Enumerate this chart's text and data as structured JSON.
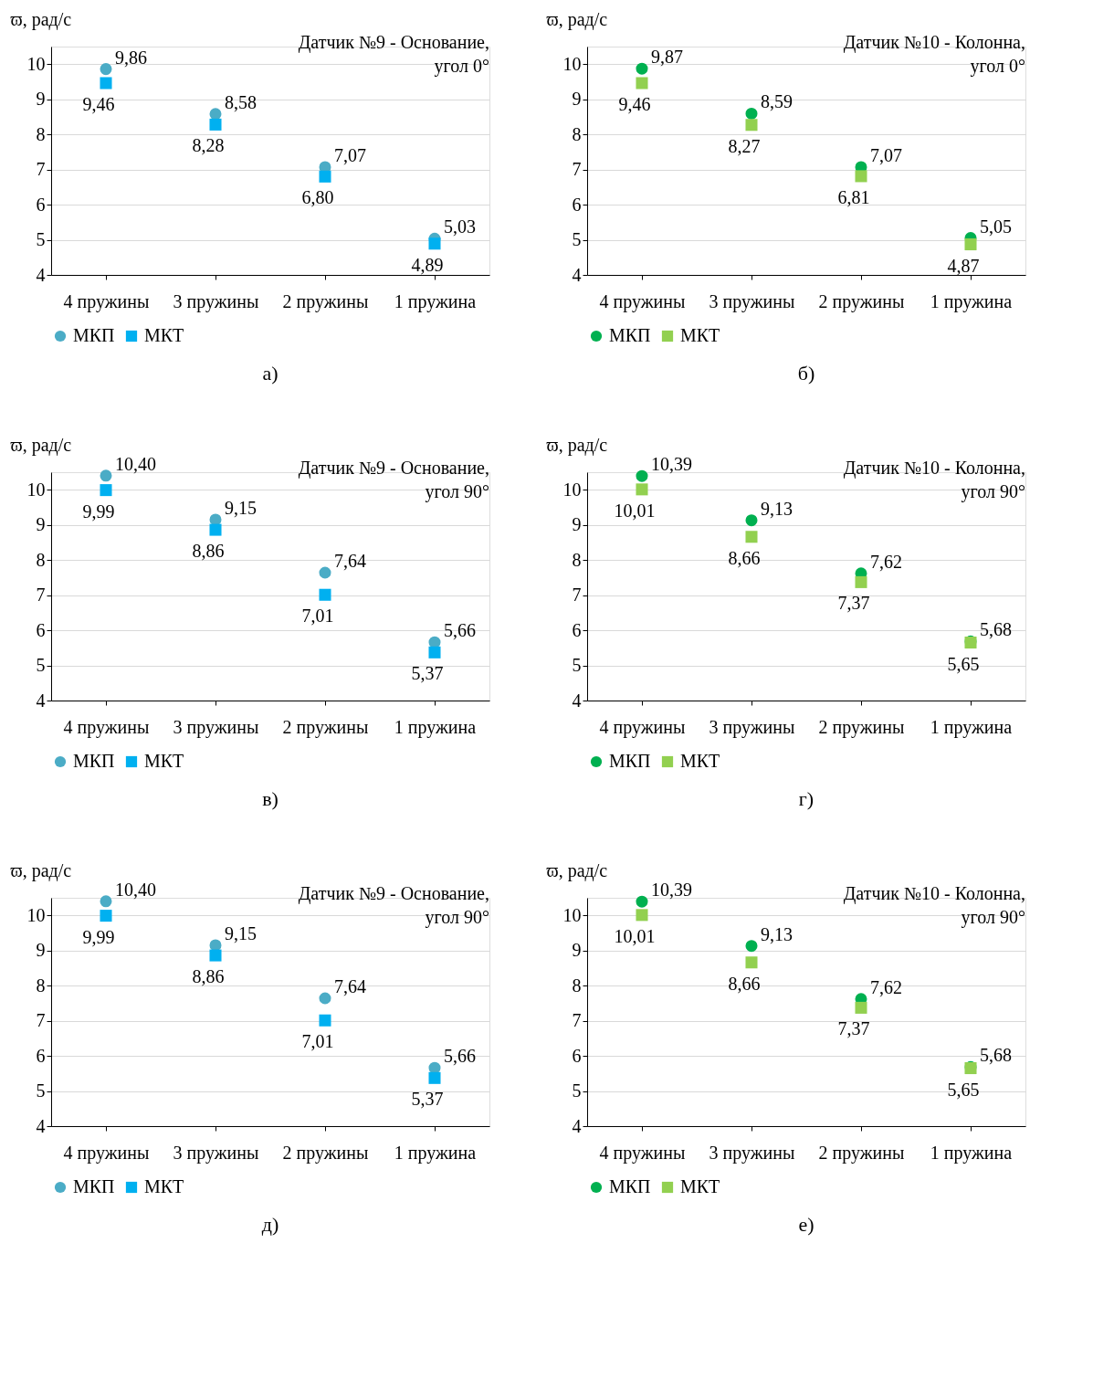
{
  "chart_data": [
    {
      "type": "scatter",
      "title": "Датчик №9 - Основание, угол 0°",
      "ylabel": "ϖ, рад/с",
      "categories": [
        "4 пружины",
        "3 пружины",
        "2 пружины",
        "1 пружина"
      ],
      "ylim": [
        4,
        10.5
      ],
      "yticks": [
        4,
        5,
        6,
        7,
        8,
        9,
        10
      ],
      "grid": "y",
      "legend": "bottom",
      "annotations": [
        "а)"
      ],
      "series": [
        {
          "name": "МКП",
          "color": "#4bacc6",
          "marker": "circle",
          "values": [
            9.86,
            8.58,
            7.07,
            5.03
          ],
          "value_labels": [
            "9,86",
            "8,58",
            "7,07",
            "5,03"
          ]
        },
        {
          "name": "МКТ",
          "color": "#00b0f0",
          "marker": "square",
          "values": [
            9.46,
            8.28,
            6.8,
            4.89
          ],
          "value_labels": [
            "9,46",
            "8,28",
            "6,80",
            "4,89"
          ]
        }
      ]
    },
    {
      "type": "scatter",
      "title": "Датчик №10 - Колонна, угол 0°",
      "ylabel": "ϖ, рад/с",
      "categories": [
        "4 пружины",
        "3 пружины",
        "2 пружины",
        "1 пружина"
      ],
      "ylim": [
        4,
        10.5
      ],
      "yticks": [
        4,
        5,
        6,
        7,
        8,
        9,
        10
      ],
      "grid": "y",
      "legend": "bottom",
      "annotations": [
        "б)"
      ],
      "series": [
        {
          "name": "МКП",
          "color": "#00b050",
          "marker": "circle",
          "values": [
            9.87,
            8.59,
            7.07,
            5.05
          ],
          "value_labels": [
            "9,87",
            "8,59",
            "7,07",
            "5,05"
          ]
        },
        {
          "name": "МКТ",
          "color": "#92d050",
          "marker": "square",
          "values": [
            9.46,
            8.27,
            6.81,
            4.87
          ],
          "value_labels": [
            "9,46",
            "8,27",
            "6,81",
            "4,87"
          ]
        }
      ]
    },
    {
      "type": "scatter",
      "title": "Датчик №9 - Основание, угол 90°",
      "ylabel": "ϖ, рад/с",
      "categories": [
        "4 пружины",
        "3 пружины",
        "2 пружины",
        "1 пружина"
      ],
      "ylim": [
        4,
        10.5
      ],
      "yticks": [
        4,
        5,
        6,
        7,
        8,
        9,
        10
      ],
      "grid": "y",
      "legend": "bottom",
      "annotations": [
        "в)"
      ],
      "series": [
        {
          "name": "МКП",
          "color": "#4bacc6",
          "marker": "circle",
          "values": [
            10.4,
            9.15,
            7.64,
            5.66
          ],
          "value_labels": [
            "10,40",
            "9,15",
            "7,64",
            "5,66"
          ]
        },
        {
          "name": "МКТ",
          "color": "#00b0f0",
          "marker": "square",
          "values": [
            9.99,
            8.86,
            7.01,
            5.37
          ],
          "value_labels": [
            "9,99",
            "8,86",
            "7,01",
            "5,37"
          ]
        }
      ]
    },
    {
      "type": "scatter",
      "title": "Датчик №10 - Колонна, угол 90°",
      "ylabel": "ϖ, рад/с",
      "categories": [
        "4 пружины",
        "3 пружины",
        "2 пружины",
        "1 пружина"
      ],
      "ylim": [
        4,
        10.5
      ],
      "yticks": [
        4,
        5,
        6,
        7,
        8,
        9,
        10
      ],
      "grid": "y",
      "legend": "bottom",
      "annotations": [
        "г)"
      ],
      "series": [
        {
          "name": "МКП",
          "color": "#00b050",
          "marker": "circle",
          "values": [
            10.39,
            9.13,
            7.62,
            5.68
          ],
          "value_labels": [
            "10,39",
            "9,13",
            "7,62",
            "5,68"
          ]
        },
        {
          "name": "МКТ",
          "color": "#92d050",
          "marker": "square",
          "values": [
            10.01,
            8.66,
            7.37,
            5.65
          ],
          "value_labels": [
            "10,01",
            "8,66",
            "7,37",
            "5,65"
          ]
        }
      ]
    },
    {
      "type": "scatter",
      "title": "Датчик №9 - Основание, угол 90°",
      "ylabel": "ϖ, рад/с",
      "categories": [
        "4 пружины",
        "3 пружины",
        "2 пружины",
        "1 пружина"
      ],
      "ylim": [
        4,
        10.5
      ],
      "yticks": [
        4,
        5,
        6,
        7,
        8,
        9,
        10
      ],
      "grid": "y",
      "legend": "bottom",
      "annotations": [
        "д)"
      ],
      "series": [
        {
          "name": "МКП",
          "color": "#4bacc6",
          "marker": "circle",
          "values": [
            10.4,
            9.15,
            7.64,
            5.66
          ],
          "value_labels": [
            "10,40",
            "9,15",
            "7,64",
            "5,66"
          ]
        },
        {
          "name": "МКТ",
          "color": "#00b0f0",
          "marker": "square",
          "values": [
            9.99,
            8.86,
            7.01,
            5.37
          ],
          "value_labels": [
            "9,99",
            "8,86",
            "7,01",
            "5,37"
          ]
        }
      ]
    },
    {
      "type": "scatter",
      "title": "Датчик №10 - Колонна, угол 90°",
      "ylabel": "ϖ, рад/с",
      "categories": [
        "4 пружины",
        "3 пружины",
        "2 пружины",
        "1 пружина"
      ],
      "ylim": [
        4,
        10.5
      ],
      "yticks": [
        4,
        5,
        6,
        7,
        8,
        9,
        10
      ],
      "grid": "y",
      "legend": "bottom",
      "annotations": [
        "е)"
      ],
      "series": [
        {
          "name": "МКП",
          "color": "#00b050",
          "marker": "circle",
          "values": [
            10.39,
            9.13,
            7.62,
            5.68
          ],
          "value_labels": [
            "10,39",
            "9,13",
            "7,62",
            "5,68"
          ]
        },
        {
          "name": "МКТ",
          "color": "#92d050",
          "marker": "square",
          "values": [
            10.01,
            8.66,
            7.37,
            5.65
          ],
          "value_labels": [
            "10,01",
            "8,66",
            "7,37",
            "5,65"
          ]
        }
      ]
    }
  ]
}
